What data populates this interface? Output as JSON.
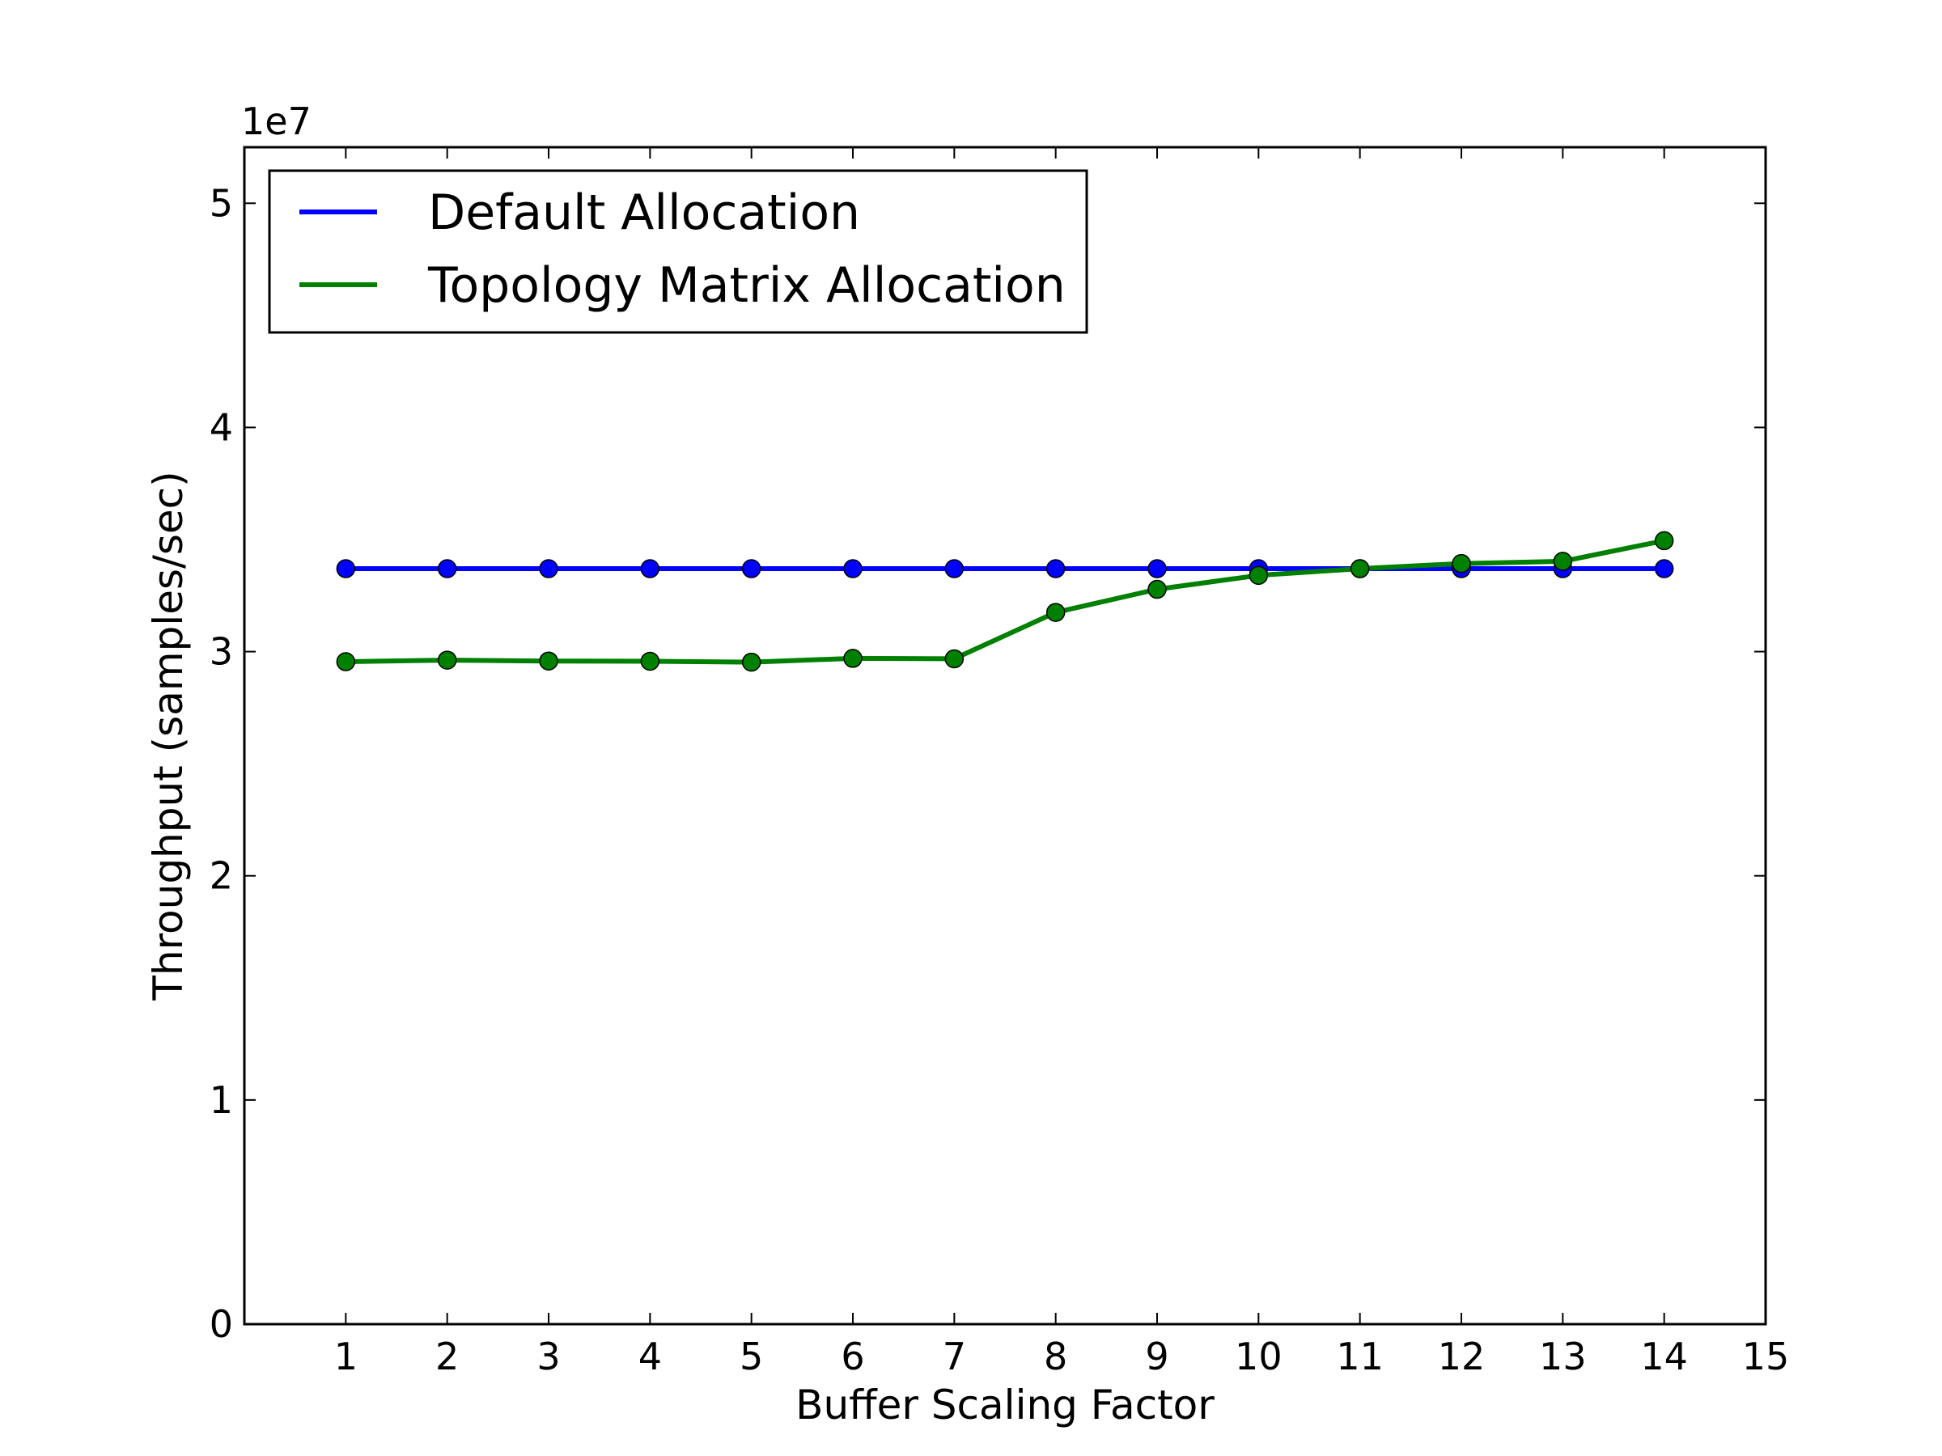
{
  "chart_data": {
    "type": "line",
    "title": "",
    "xlabel": "Buffer Scaling Factor",
    "ylabel": "Throughput (samples/sec)",
    "y_offset_label": "1e7",
    "xlim": [
      0,
      15
    ],
    "ylim": [
      0,
      52500000
    ],
    "x_ticks": [
      1,
      2,
      3,
      4,
      5,
      6,
      7,
      8,
      9,
      10,
      11,
      12,
      13,
      14,
      15
    ],
    "y_ticks": [
      0,
      10000000,
      20000000,
      30000000,
      40000000,
      50000000
    ],
    "y_tick_labels": [
      "0",
      "1",
      "2",
      "3",
      "4",
      "5"
    ],
    "grid": false,
    "legend_position": "top-left",
    "x": [
      1,
      2,
      3,
      4,
      5,
      6,
      7,
      8,
      9,
      10,
      11,
      12,
      13,
      14
    ],
    "series": [
      {
        "name": "Default Allocation",
        "color": "#0000ff",
        "marker": "circle",
        "values": [
          33700000,
          33700000,
          33700000,
          33700000,
          33700000,
          33700000,
          33700000,
          33700000,
          33700000,
          33700000,
          33700000,
          33700000,
          33700000,
          33700000
        ]
      },
      {
        "name": "Topology Matrix Allocation",
        "color": "#008000",
        "marker": "circle",
        "values": [
          29550000,
          29620000,
          29580000,
          29570000,
          29530000,
          29700000,
          29680000,
          31750000,
          32780000,
          33400000,
          33700000,
          33930000,
          34030000,
          34950000
        ]
      }
    ]
  }
}
